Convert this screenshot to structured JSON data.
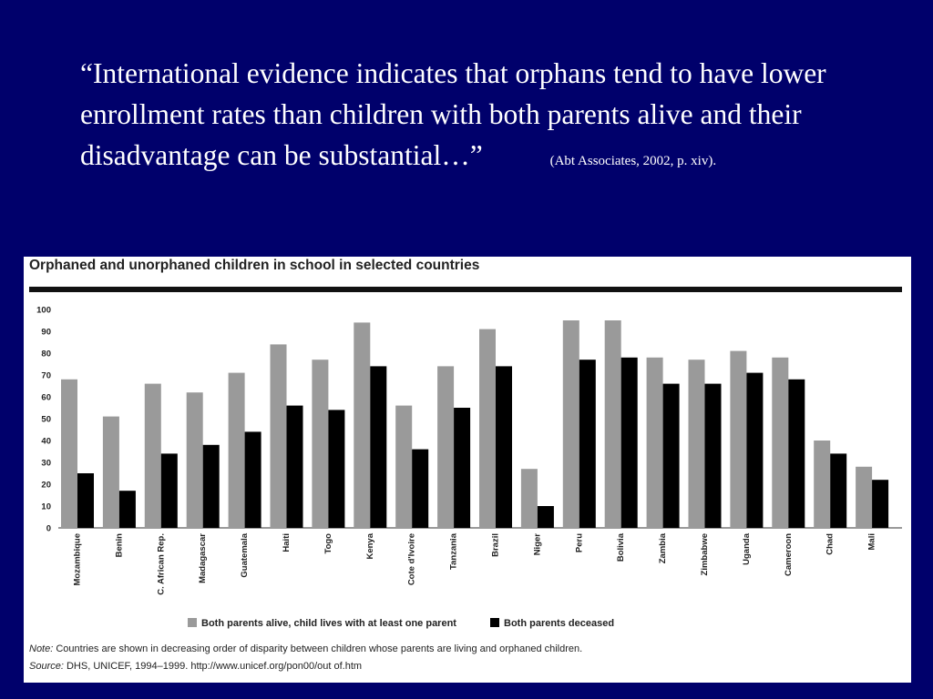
{
  "quote": {
    "text": "“International evidence indicates that orphans tend to have lower enrollment rates than children with both parents alive and their disadvantage can be substantial…”",
    "citation": "(Abt Associates, 2002, p. xiv)."
  },
  "chart_data": {
    "type": "bar",
    "title": "Orphaned and unorphaned children in school in selected countries",
    "xlabel": "",
    "ylabel": "",
    "ylim": [
      0,
      100
    ],
    "yticks": [
      0,
      10,
      20,
      30,
      40,
      50,
      60,
      70,
      80,
      90,
      100
    ],
    "grid": false,
    "legend_position": "bottom",
    "categories": [
      "Mozambique",
      "Benin",
      "C. African Rep.",
      "Madagascar",
      "Guatemala",
      "Haiti",
      "Togo",
      "Kenya",
      "Cote d'Ivoire",
      "Tanzania",
      "Brazil",
      "Niger",
      "Peru",
      "Bolivia",
      "Zambia",
      "Zimbabwe",
      "Uganda",
      "Cameroon",
      "Chad",
      "Mali"
    ],
    "series": [
      {
        "name": "Both parents alive, child lives with at least one parent",
        "color": "#9a9a9a",
        "values": [
          68,
          51,
          66,
          62,
          71,
          84,
          77,
          94,
          56,
          74,
          91,
          27,
          95,
          95,
          78,
          77,
          81,
          78,
          40,
          28
        ]
      },
      {
        "name": "Both parents deceased",
        "color": "#000000",
        "values": [
          25,
          17,
          34,
          38,
          44,
          56,
          54,
          74,
          36,
          55,
          74,
          10,
          77,
          78,
          66,
          66,
          71,
          68,
          34,
          22
        ]
      }
    ]
  },
  "notes": {
    "note_label": "Note:",
    "note_text": " Countries are shown in decreasing order of disparity between children whose parents are living and orphaned children.",
    "source_label": "Source:",
    "source_text": " DHS, UNICEF, 1994–1999. http://www.unicef.org/pon00/out of.htm"
  }
}
